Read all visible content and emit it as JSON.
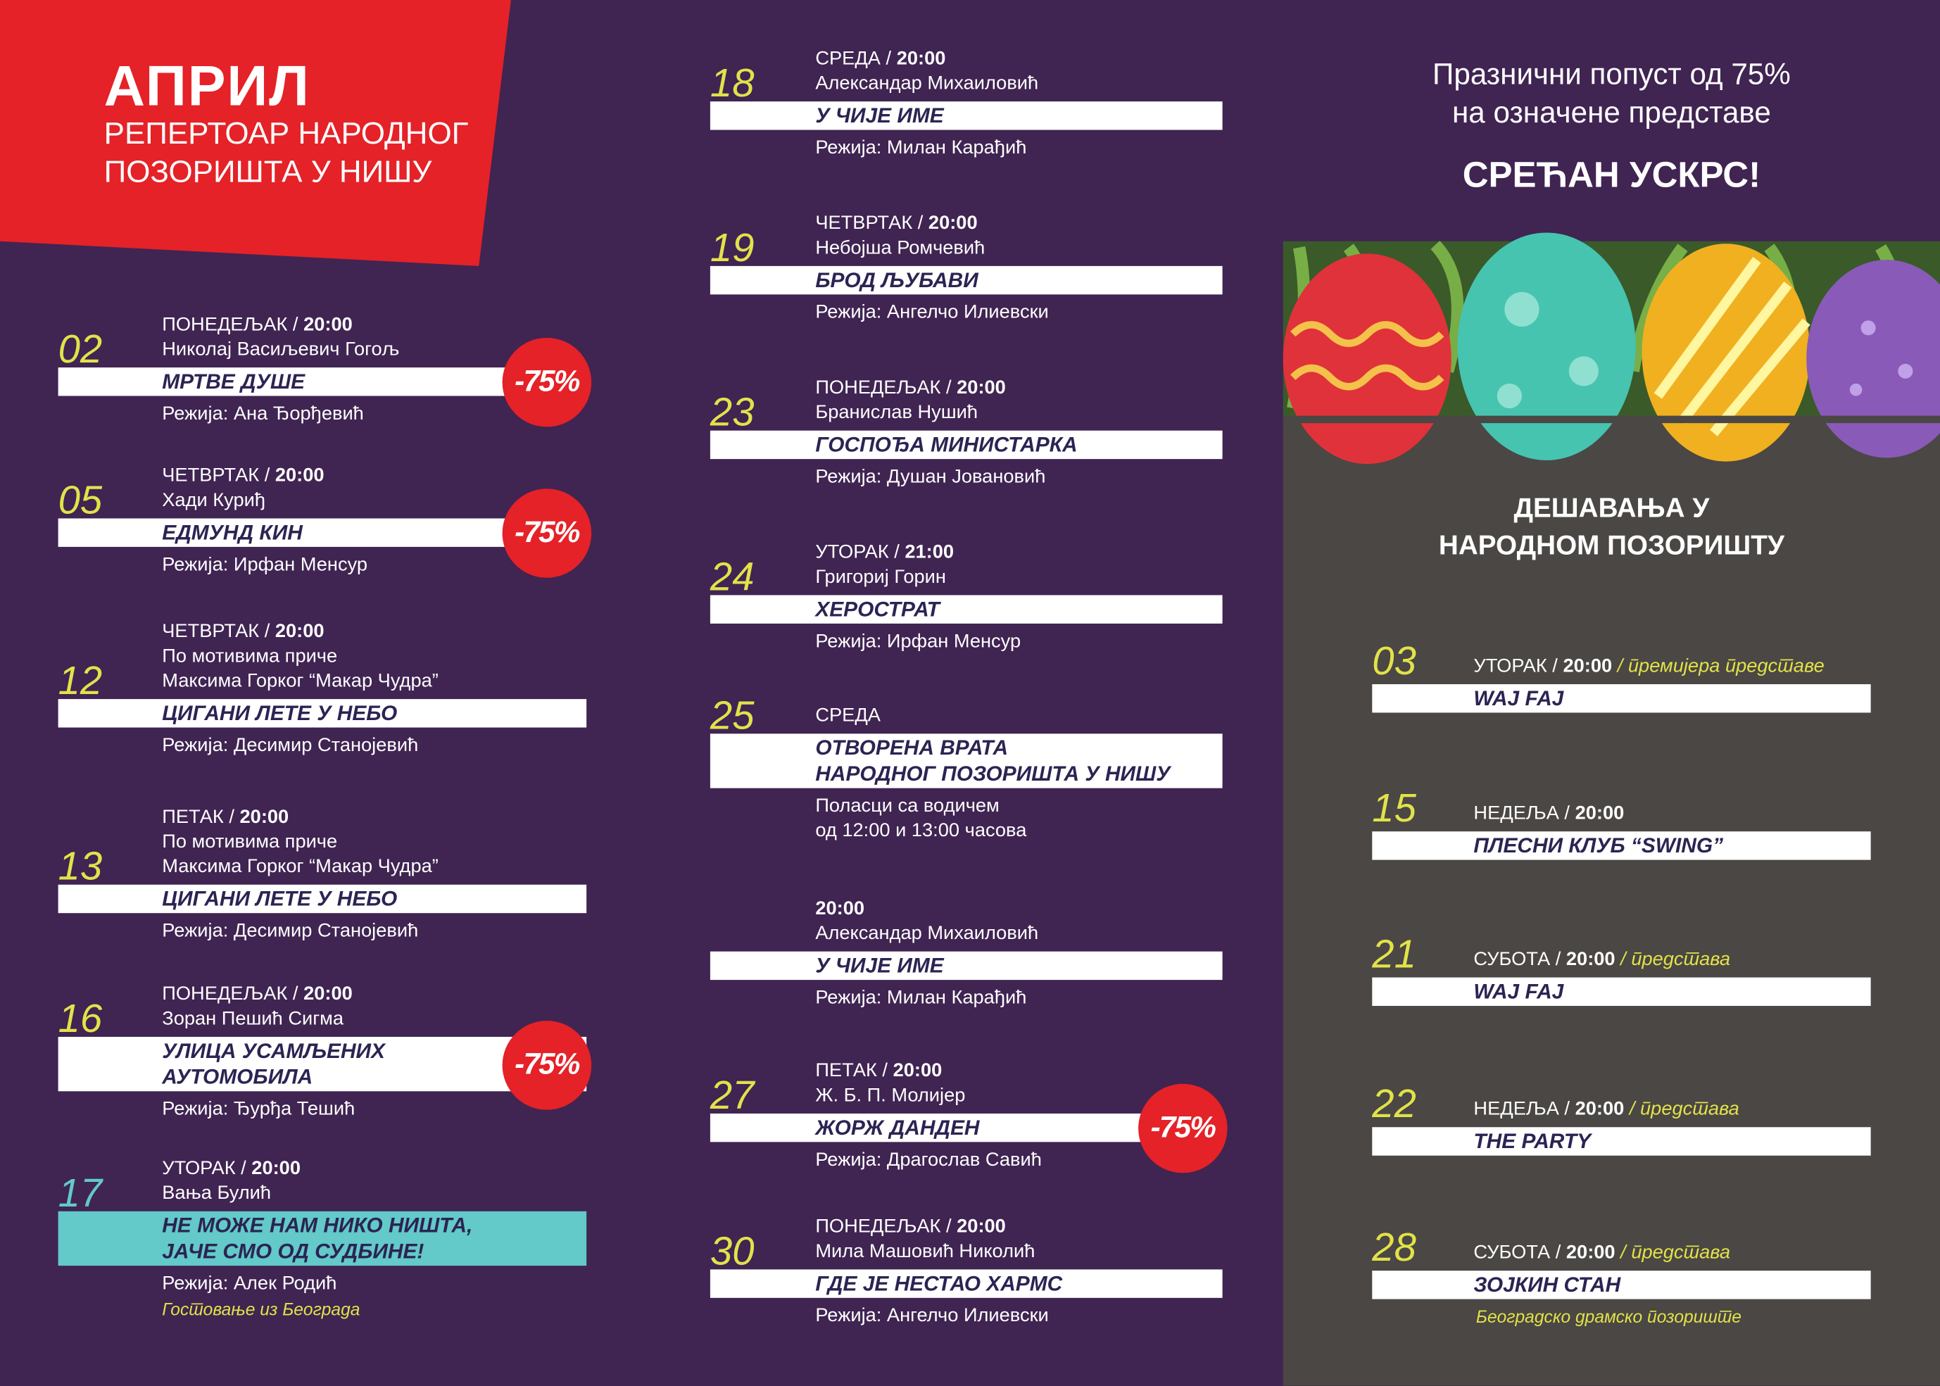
{
  "header": {
    "month": "АПРИЛ",
    "subtitle_lines": [
      "РЕПЕРТОАР НАРОДНОГ",
      "ПОЗОРИШТА У НИШУ"
    ]
  },
  "promo": {
    "discount_lines": [
      "Празнични попуст од 75%",
      "на означене представе"
    ],
    "greeting": "СРЕЋАН УСКРС!"
  },
  "repertoire": [
    [
      {
        "day": "02",
        "weekday": "ПОНЕДЕЉАК /",
        "time": "20:00",
        "info": [
          "Николај Васиљевич Гогољ"
        ],
        "title": [
          "МРТВЕ ДУШЕ"
        ],
        "after": [
          "Режија: Ана Ђорђевић"
        ],
        "badge": "-75%"
      },
      {
        "day": "05",
        "weekday": "ЧЕТВРТАК /",
        "time": "20:00",
        "info": [
          "Хади Куриђ"
        ],
        "title": [
          "ЕДМУНД КИН"
        ],
        "after": [
          "Режија: Ирфан Менсур"
        ],
        "badge": "-75%"
      },
      {
        "day": "12",
        "weekday": "ЧЕТВРТАК /",
        "time": "20:00",
        "info": [
          "По мотивима приче",
          "Максима Горког “Макар Чудра”"
        ],
        "title": [
          "ЦИГАНИ ЛЕТЕ У НЕБО"
        ],
        "after": [
          "Режија: Десимир Станојевић"
        ]
      },
      {
        "day": "13",
        "weekday": "ПЕТАК /",
        "time": "20:00",
        "info": [
          "По мотивима приче",
          "Максима Горког “Макар Чудра”"
        ],
        "title": [
          "ЦИГАНИ ЛЕТЕ У НЕБО"
        ],
        "after": [
          "Режија: Десимир Станојевић"
        ]
      },
      {
        "day": "16",
        "weekday": "ПОНЕДЕЉАК /",
        "time": "20:00",
        "info": [
          "Зоран Пешић Сигма"
        ],
        "title": [
          "УЛИЦА УСАМЉЕНИХ",
          "АУТОМОБИЛА"
        ],
        "after": [
          "Режија: Ђурђа Тешић"
        ],
        "badge": "-75%"
      },
      {
        "day": "17",
        "weekday": "УТОРАК /",
        "time": "20:00",
        "info": [
          "Вања Булић"
        ],
        "title": [
          "НЕ МОЖЕ НАМ НИКО НИШТА,",
          "ЈАЧЕ СМО ОД СУДБИНЕ!"
        ],
        "after": [
          "Режија: Алек Родић"
        ],
        "note": "Гостовање из Београда",
        "accent_color": "#63c9c9"
      }
    ],
    [
      {
        "day": "18",
        "weekday": "СРЕДА /",
        "time": "20:00",
        "info": [
          "Александар Михаиловић"
        ],
        "title": [
          "У ЧИЈЕ ИМЕ"
        ],
        "after": [
          "Режија: Милан Карађић"
        ]
      },
      {
        "day": "19",
        "weekday": "ЧЕТВРТАК /",
        "time": "20:00",
        "info": [
          "Небојша Ромчевић"
        ],
        "title": [
          "БРОД ЉУБАВИ"
        ],
        "after": [
          "Режија: Ангелчо Илиевски"
        ]
      },
      {
        "day": "23",
        "weekday": "ПОНЕДЕЉАК /",
        "time": "20:00",
        "info": [
          "Бранислав Нушић"
        ],
        "title": [
          "ГОСПОЂА МИНИСТАРКА"
        ],
        "after": [
          "Режија: Душан Јовановић"
        ]
      },
      {
        "day": "24",
        "weekday": "УТОРАК /",
        "time": "21:00",
        "info": [
          "Григориј Горин"
        ],
        "title": [
          "ХЕРОСТРАТ"
        ],
        "after": [
          "Режија: Ирфан Менсур"
        ]
      },
      {
        "day": "25",
        "weekday": "СРЕДА",
        "info": [],
        "title": [
          "ОТВОРЕНА ВРАТА",
          "НАРОДНОГ ПОЗОРИШТА У НИШУ"
        ],
        "after": [
          "Поласци са водичем",
          "од 12:00 и 13:00 часова"
        ]
      },
      {
        "time": "20:00",
        "info": [
          "Александар Михаиловић"
        ],
        "title": [
          "У ЧИЈЕ ИМЕ"
        ],
        "after": [
          "Режија: Милан Карађић"
        ]
      },
      {
        "day": "27",
        "weekday": "ПЕТАК /",
        "time": "20:00",
        "info": [
          "Ж. Б. П. Молијер"
        ],
        "title": [
          "ЖОРЖ ДАНДЕН"
        ],
        "after": [
          "Режија: Драгослав Савић"
        ],
        "badge": "-75%"
      },
      {
        "day": "30",
        "weekday": "ПОНЕДЕЉАК /",
        "time": "20:00",
        "info": [
          "Мила Машовић Николић"
        ],
        "title": [
          "ГДЕ ЈЕ НЕСТАО ХАРМС"
        ],
        "after": [
          "Режија: Ангелчо Илиевски"
        ]
      }
    ]
  ],
  "events": {
    "title_lines": [
      "ДЕШАВАЊА У",
      "НАРОДНОМ ПОЗОРИШТУ"
    ],
    "items": [
      {
        "day": "03",
        "weekday": "УТОРАК /",
        "time": "20:00",
        "note": "/ премијера представе",
        "title": "WAJ FAJ"
      },
      {
        "day": "15",
        "weekday": "НЕДЕЉА /",
        "time": "20:00",
        "title": "ПЛЕСНИ КЛУБ “SWING”"
      },
      {
        "day": "21",
        "weekday": "СУБОТА /",
        "time": "20:00",
        "note": "/ представа",
        "title": "WAJ FAJ"
      },
      {
        "day": "22",
        "weekday": "НЕДЕЉА /",
        "time": "20:00",
        "note": "/ представа",
        "title": "THE PARTY"
      },
      {
        "day": "28",
        "weekday": "СУБОТА /",
        "time": "20:00",
        "note": "/ представа",
        "title": "ЗОЈКИН СТАН",
        "footer": "Београдско драмско позориште"
      }
    ]
  }
}
